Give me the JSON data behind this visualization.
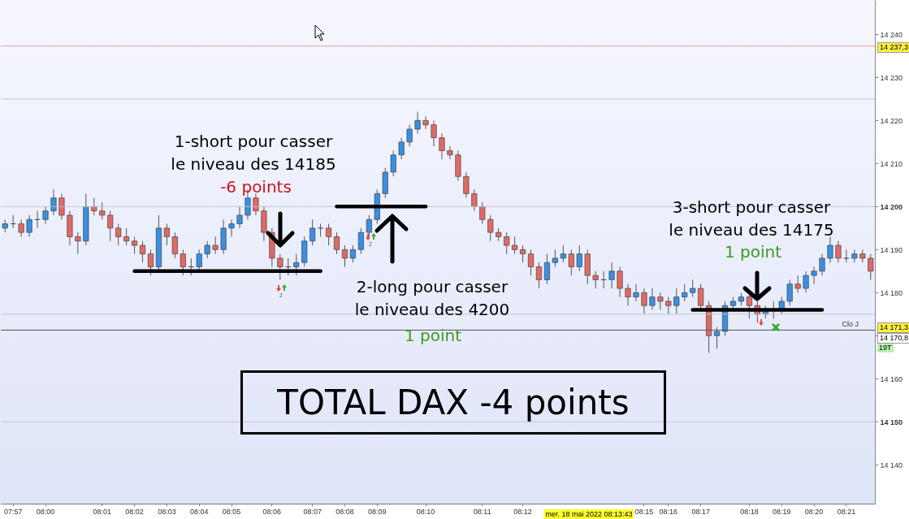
{
  "chart_data": {
    "type": "candlestick",
    "categories": [
      null,
      "07:57",
      null,
      null,
      null,
      "08:00",
      null,
      null,
      null,
      null,
      null,
      null,
      "08:01",
      null,
      null,
      null,
      "08:02",
      null,
      null,
      null,
      "08:03",
      null,
      null,
      null,
      "08:04",
      null,
      null,
      null,
      "08:05",
      null,
      null,
      null,
      null,
      "08:06",
      null,
      null,
      null,
      null,
      "08:07",
      null,
      null,
      null,
      "08:08",
      null,
      null,
      null,
      "08:09",
      null,
      null,
      null,
      null,
      null,
      "08:10",
      null,
      null,
      null,
      null,
      null,
      null,
      "08:11",
      null,
      null,
      null,
      null,
      "08:12",
      null,
      null,
      null,
      null,
      null,
      null,
      null,
      null,
      null,
      null,
      null,
      null,
      null,
      null,
      "08:15",
      null,
      null,
      "08:16",
      null,
      null,
      null,
      "08:17",
      null,
      null,
      null,
      null,
      null,
      "08:18",
      null,
      null,
      null,
      "08:19",
      null,
      null,
      null,
      "08:20",
      null,
      null,
      null,
      "08:21",
      null,
      null,
      null
    ],
    "ohlc": [
      [
        14195,
        14197,
        14194,
        14196
      ],
      [
        14196,
        14198,
        14195,
        14196
      ],
      [
        14196,
        14197,
        14193,
        14194
      ],
      [
        14194,
        14198,
        14193,
        14197
      ],
      [
        14197,
        14199,
        14195,
        14197
      ],
      [
        14197,
        14200,
        14196,
        14199
      ],
      [
        14199,
        14204,
        14198,
        14202
      ],
      [
        14202,
        14203,
        14197,
        14198
      ],
      [
        14198,
        14199,
        14191,
        14193
      ],
      [
        14193,
        14194,
        14189,
        14192
      ],
      [
        14192,
        14203,
        14191,
        14200
      ],
      [
        14200,
        14202,
        14198,
        14199
      ],
      [
        14199,
        14201,
        14197,
        14198
      ],
      [
        14198,
        14199,
        14192,
        14195
      ],
      [
        14195,
        14196,
        14191,
        14193
      ],
      [
        14193,
        14195,
        14191,
        14192
      ],
      [
        14192,
        14193,
        14189,
        14191
      ],
      [
        14191,
        14192,
        14187,
        14189
      ],
      [
        14189,
        14190,
        14184,
        14186
      ],
      [
        14186,
        14198,
        14185,
        14195
      ],
      [
        14195,
        14196,
        14191,
        14193
      ],
      [
        14193,
        14194,
        14188,
        14189
      ],
      [
        14189,
        14190,
        14184,
        14186
      ],
      [
        14186,
        14188,
        14184,
        14186
      ],
      [
        14186,
        14190,
        14185,
        14189
      ],
      [
        14189,
        14192,
        14188,
        14191
      ],
      [
        14191,
        14193,
        14189,
        14190
      ],
      [
        14190,
        14197,
        14189,
        14195
      ],
      [
        14195,
        14197,
        14193,
        14196
      ],
      [
        14196,
        14200,
        14195,
        14198
      ],
      [
        14198,
        14204,
        14197,
        14202
      ],
      [
        14202,
        14203,
        14198,
        14199
      ],
      [
        14199,
        14200,
        14192,
        14194
      ],
      [
        14194,
        14195,
        14186,
        14188
      ],
      [
        14188,
        14189,
        14183,
        14186
      ],
      [
        14186,
        14188,
        14184,
        14186
      ],
      [
        14186,
        14189,
        14184,
        14187
      ],
      [
        14187,
        14193,
        14186,
        14192
      ],
      [
        14192,
        14197,
        14191,
        14195
      ],
      [
        14195,
        14196,
        14193,
        14195
      ],
      [
        14195,
        14196,
        14191,
        14193
      ],
      [
        14193,
        14194,
        14189,
        14190
      ],
      [
        14190,
        14191,
        14186,
        14188
      ],
      [
        14188,
        14191,
        14187,
        14190
      ],
      [
        14190,
        14195,
        14189,
        14194
      ],
      [
        14194,
        14198,
        14193,
        14197
      ],
      [
        14197,
        14204,
        14196,
        14203
      ],
      [
        14203,
        14209,
        14202,
        14208
      ],
      [
        14208,
        14213,
        14207,
        14212
      ],
      [
        14212,
        14216,
        14211,
        14215
      ],
      [
        14215,
        14219,
        14214,
        14218
      ],
      [
        14218,
        14222,
        14217,
        14220
      ],
      [
        14220,
        14221,
        14218,
        14219
      ],
      [
        14219,
        14220,
        14214,
        14216
      ],
      [
        14216,
        14217,
        14211,
        14213
      ],
      [
        14213,
        14214,
        14211,
        14212
      ],
      [
        14212,
        14213,
        14206,
        14207
      ],
      [
        14207,
        14208,
        14202,
        14203
      ],
      [
        14203,
        14204,
        14199,
        14200
      ],
      [
        14200,
        14201,
        14196,
        14197
      ],
      [
        14197,
        14198,
        14192,
        14194
      ],
      [
        14194,
        14195,
        14192,
        14193
      ],
      [
        14193,
        14194,
        14189,
        14191
      ],
      [
        14191,
        14193,
        14189,
        14190
      ],
      [
        14190,
        14191,
        14187,
        14189
      ],
      [
        14189,
        14190,
        14184,
        14186
      ],
      [
        14186,
        14187,
        14181,
        14183
      ],
      [
        14183,
        14189,
        14182,
        14187
      ],
      [
        14187,
        14190,
        14186,
        14188
      ],
      [
        14188,
        14191,
        14187,
        14189
      ],
      [
        14189,
        14190,
        14184,
        14186
      ],
      [
        14186,
        14191,
        14185,
        14189
      ],
      [
        14189,
        14190,
        14182,
        14184
      ],
      [
        14184,
        14185,
        14181,
        14183
      ],
      [
        14183,
        14185,
        14181,
        14183
      ],
      [
        14183,
        14187,
        14181,
        14185
      ],
      [
        14185,
        14186,
        14179,
        14181
      ],
      [
        14181,
        14182,
        14177,
        14179
      ],
      [
        14179,
        14182,
        14178,
        14180
      ],
      [
        14180,
        14181,
        14175,
        14177
      ],
      [
        14177,
        14181,
        14176,
        14179
      ],
      [
        14179,
        14180,
        14176,
        14178
      ],
      [
        14178,
        14179,
        14175,
        14177
      ],
      [
        14177,
        14181,
        14175,
        14179
      ],
      [
        14179,
        14182,
        14178,
        14180
      ],
      [
        14180,
        14183,
        14179,
        14181
      ],
      [
        14181,
        14182,
        14176,
        14177
      ],
      [
        14177,
        14178,
        14166,
        14170
      ],
      [
        14170,
        14172,
        14167,
        14171
      ],
      [
        14171,
        14178,
        14170,
        14177
      ],
      [
        14177,
        14179,
        14176,
        14178
      ],
      [
        14178,
        14180,
        14177,
        14179
      ],
      [
        14179,
        14180,
        14174,
        14177
      ],
      [
        14177,
        14178,
        14173,
        14175
      ],
      [
        14175,
        14177,
        14174,
        14176
      ],
      [
        14176,
        14178,
        14174,
        14176
      ],
      [
        14176,
        14179,
        14175,
        14178
      ],
      [
        14178,
        14183,
        14177,
        14182
      ],
      [
        14182,
        14184,
        14180,
        14181
      ],
      [
        14181,
        14185,
        14180,
        14184
      ],
      [
        14184,
        14186,
        14182,
        14185
      ],
      [
        14185,
        14189,
        14184,
        14188
      ],
      [
        14188,
        14193,
        14187,
        14191
      ],
      [
        14191,
        14192,
        14187,
        14188
      ],
      [
        14188,
        14190,
        14187,
        14188
      ],
      [
        14188,
        14190,
        14187,
        14189
      ],
      [
        14189,
        14190,
        14187,
        14188
      ],
      [
        14188,
        14189,
        14183,
        14185
      ]
    ],
    "colors": [
      "#3b8fe0",
      "#333333",
      "#e06a66",
      "#3b8fe0",
      "#333333",
      "#3b8fe0",
      "#3b8fe0",
      "#e06a66",
      "#e06a66",
      "#e06a66",
      "#3b8fe0",
      "#e06a66",
      "#e06a66",
      "#e06a66",
      "#e06a66",
      "#e06a66",
      "#e06a66",
      "#e06a66",
      "#e06a66",
      "#3b8fe0",
      "#e06a66",
      "#e06a66",
      "#e06a66",
      "#333333",
      "#3b8fe0",
      "#3b8fe0",
      "#e06a66",
      "#3b8fe0",
      "#3b8fe0",
      "#3b8fe0",
      "#3b8fe0",
      "#e06a66",
      "#e06a66",
      "#e06a66",
      "#e06a66",
      "#333333",
      "#3b8fe0",
      "#3b8fe0",
      "#3b8fe0",
      "#333333",
      "#e06a66",
      "#e06a66",
      "#e06a66",
      "#3b8fe0",
      "#3b8fe0",
      "#3b8fe0",
      "#3b8fe0",
      "#3b8fe0",
      "#3b8fe0",
      "#3b8fe0",
      "#3b8fe0",
      "#3b8fe0",
      "#e06a66",
      "#e06a66",
      "#e06a66",
      "#e06a66",
      "#e06a66",
      "#e06a66",
      "#e06a66",
      "#e06a66",
      "#e06a66",
      "#e06a66",
      "#e06a66",
      "#e06a66",
      "#e06a66",
      "#e06a66",
      "#e06a66",
      "#3b8fe0",
      "#3b8fe0",
      "#3b8fe0",
      "#e06a66",
      "#3b8fe0",
      "#e06a66",
      "#e06a66",
      "#333333",
      "#3b8fe0",
      "#e06a66",
      "#e06a66",
      "#3b8fe0",
      "#e06a66",
      "#3b8fe0",
      "#e06a66",
      "#e06a66",
      "#3b8fe0",
      "#3b8fe0",
      "#3b8fe0",
      "#e06a66",
      "#e06a66",
      "#3b8fe0",
      "#3b8fe0",
      "#3b8fe0",
      "#3b8fe0",
      "#e06a66",
      "#e06a66",
      "#3b8fe0",
      "#333333",
      "#3b8fe0",
      "#3b8fe0",
      "#e06a66",
      "#3b8fe0",
      "#3b8fe0",
      "#3b8fe0",
      "#3b8fe0",
      "#e06a66",
      "#333333",
      "#3b8fe0",
      "#e06a66",
      "#e06a66"
    ],
    "series": [
      {
        "type": "line",
        "color": "#000000",
        "values": [
          null,
          null,
          null,
          null,
          null,
          null,
          null,
          null,
          null,
          null,
          null,
          null,
          null,
          null,
          null,
          null,
          14185,
          14185,
          14185,
          14185,
          14185,
          14185,
          14185,
          14185,
          14185,
          14185,
          14185,
          14185,
          14185,
          14185,
          14185,
          14185,
          14185,
          14185,
          14185,
          14185,
          14185,
          14185,
          14185,
          14185,
          null,
          null,
          null,
          null,
          null,
          null,
          null,
          null,
          null,
          null,
          null,
          null,
          null,
          null,
          null,
          null,
          null,
          null,
          null,
          null,
          null,
          null,
          null,
          null,
          null,
          null,
          null,
          null,
          null,
          null,
          null,
          null,
          null,
          null,
          null,
          null,
          null,
          null,
          null,
          null,
          null,
          null,
          null,
          null,
          null,
          null,
          null,
          null,
          null,
          null,
          null,
          null,
          null,
          null,
          null,
          null,
          null,
          null,
          null,
          null,
          null,
          null,
          null,
          null,
          null,
          null,
          null,
          null
        ]
      },
      {
        "type": "line",
        "color": "#000000",
        "values": [
          null,
          null,
          null,
          null,
          null,
          null,
          null,
          null,
          null,
          null,
          null,
          null,
          null,
          null,
          null,
          null,
          null,
          null,
          null,
          null,
          null,
          null,
          null,
          null,
          null,
          null,
          null,
          null,
          null,
          null,
          null,
          null,
          null,
          null,
          null,
          null,
          null,
          null,
          null,
          null,
          null,
          14200,
          14200,
          14200,
          14200,
          14200,
          14200,
          14200,
          14200,
          14200,
          14200,
          14200,
          14200,
          null,
          null,
          null,
          null,
          null,
          null,
          null,
          null,
          null,
          null,
          null,
          null,
          null,
          null,
          null,
          null,
          null,
          null,
          null,
          null,
          null,
          null,
          null,
          null,
          null,
          null,
          null,
          null,
          null,
          null,
          null,
          null,
          null,
          null,
          null,
          null,
          null,
          null,
          null,
          null,
          null,
          null,
          null,
          null,
          null,
          null,
          null,
          null,
          null,
          null,
          null,
          null,
          null,
          null,
          null
        ]
      },
      {
        "type": "line",
        "color": "#000000",
        "values": [
          null,
          null,
          null,
          null,
          null,
          null,
          null,
          null,
          null,
          null,
          null,
          null,
          null,
          null,
          null,
          null,
          null,
          null,
          null,
          null,
          null,
          null,
          null,
          null,
          null,
          null,
          null,
          null,
          null,
          null,
          null,
          null,
          null,
          null,
          null,
          null,
          null,
          null,
          null,
          null,
          null,
          null,
          null,
          null,
          null,
          null,
          null,
          null,
          null,
          null,
          null,
          null,
          null,
          null,
          null,
          null,
          null,
          null,
          null,
          null,
          null,
          null,
          null,
          null,
          null,
          null,
          null,
          null,
          null,
          null,
          null,
          null,
          null,
          null,
          null,
          null,
          null,
          null,
          null,
          null,
          null,
          null,
          null,
          null,
          null,
          14176,
          14176,
          14176,
          14176,
          14176,
          14176,
          14176,
          14176,
          14176,
          14176,
          14176,
          14176,
          14176,
          14176,
          14176,
          14176,
          14176,
          null,
          null,
          null,
          null,
          null,
          null
        ]
      }
    ],
    "ylim": [
      14131,
      14248
    ],
    "yticks": [
      {
        "value": 14140,
        "label": "14 140"
      },
      {
        "value": 14150,
        "label": "14 150"
      },
      {
        "value": 14160,
        "label": "14 160"
      },
      {
        "value": 14170,
        "label": null
      },
      {
        "value": 14180,
        "label": "14 180"
      },
      {
        "value": 14190,
        "label": "14 190"
      },
      {
        "value": 14200,
        "label": "14 200"
      },
      {
        "value": 14210,
        "label": "14 210"
      },
      {
        "value": 14220,
        "label": "14 220"
      },
      {
        "value": 14230,
        "label": "14 230"
      },
      {
        "value": 14240,
        "label": "14 240"
      }
    ],
    "ref_lines": [
      {
        "axis": "y",
        "value": 14237.3,
        "color": "#e8a0a8"
      },
      {
        "axis": "y",
        "value": 14225,
        "color": "#c4c4cc"
      },
      {
        "axis": "y",
        "value": 14200,
        "color": "#c4c4cc"
      },
      {
        "axis": "y",
        "value": 14175,
        "color": "#c4c4cc"
      },
      {
        "axis": "y",
        "value": 14171.3,
        "label": "Clo J",
        "color": "#555555"
      },
      {
        "axis": "y",
        "value": 14150,
        "color": "#c4c4cc"
      }
    ],
    "annotations": [
      "1-short pour casser\nle niveau des 14185",
      "-6 points",
      "2-long pour casser\nle niveau des 4200",
      "1 point",
      "3-short pour casser\nle niveau des 14175",
      "1 point",
      "TOTAL DAX -4 points",
      "mer. 18 mai 2022 08:13:43",
      "14 237,3",
      "14 171,3",
      "14 170,8",
      "19T",
      "2",
      "2"
    ]
  }
}
